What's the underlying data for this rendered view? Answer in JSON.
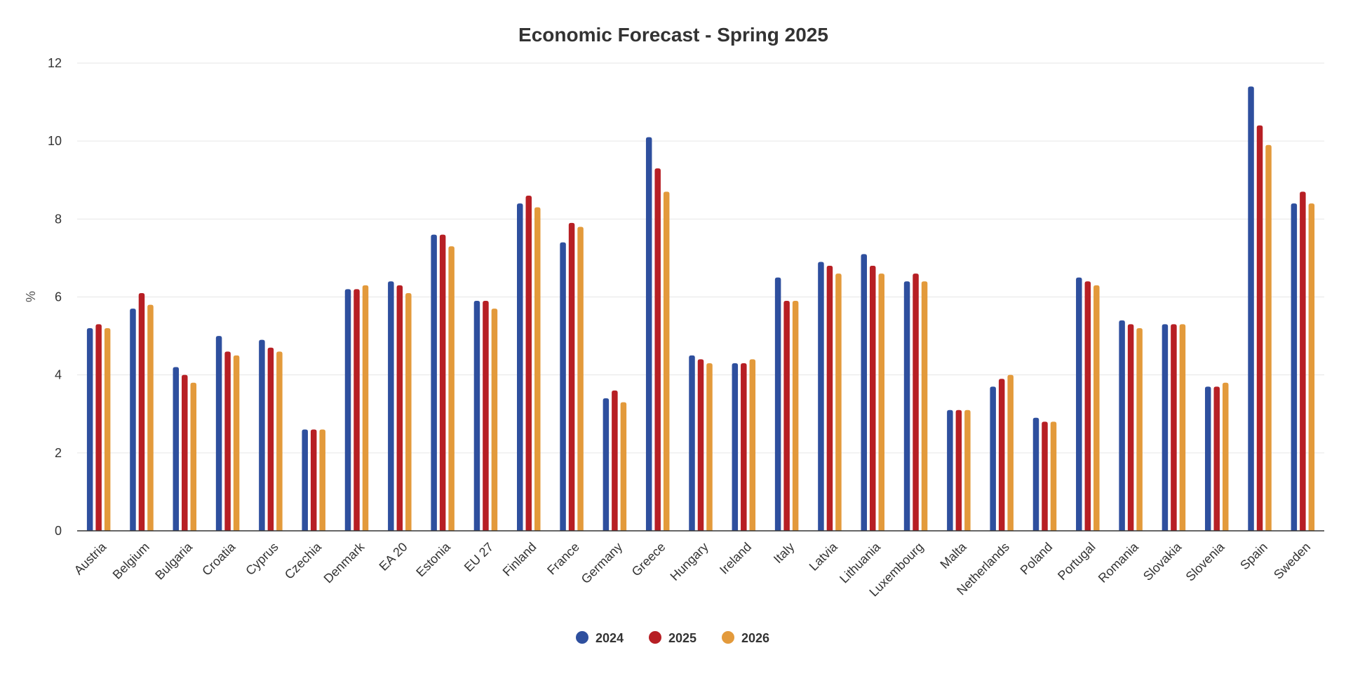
{
  "chart_data": {
    "type": "bar",
    "title": "Economic Forecast - Spring 2025",
    "xlabel": "",
    "ylabel": "%",
    "ylim": [
      0,
      12
    ],
    "yticks": [
      "0",
      "2",
      "4",
      "6",
      "8",
      "10",
      "12"
    ],
    "grid": true,
    "legend_position": "bottom",
    "categories": [
      "Austria",
      "Belgium",
      "Bulgaria",
      "Croatia",
      "Cyprus",
      "Czechia",
      "Denmark",
      "EA 20",
      "Estonia",
      "EU 27",
      "Finland",
      "France",
      "Germany",
      "Greece",
      "Hungary",
      "Ireland",
      "Italy",
      "Latvia",
      "Lithuania",
      "Luxembourg",
      "Malta",
      "Netherlands",
      "Poland",
      "Portugal",
      "Romania",
      "Slovakia",
      "Slovenia",
      "Spain",
      "Sweden"
    ],
    "series": [
      {
        "name": "2024",
        "color": "#2e4f9e",
        "values": [
          5.2,
          5.7,
          4.2,
          5.0,
          4.9,
          2.6,
          6.2,
          6.4,
          7.6,
          5.9,
          8.4,
          7.4,
          3.4,
          10.1,
          4.5,
          4.3,
          6.5,
          6.9,
          7.1,
          6.4,
          3.1,
          3.7,
          2.9,
          6.5,
          5.4,
          5.3,
          3.7,
          11.4,
          8.4
        ]
      },
      {
        "name": "2025",
        "color": "#b71f24",
        "values": [
          5.3,
          6.1,
          4.0,
          4.6,
          4.7,
          2.6,
          6.2,
          6.3,
          7.6,
          5.9,
          8.6,
          7.9,
          3.6,
          9.3,
          4.4,
          4.3,
          5.9,
          6.8,
          6.8,
          6.6,
          3.1,
          3.9,
          2.8,
          6.4,
          5.3,
          5.3,
          3.7,
          10.4,
          8.7
        ]
      },
      {
        "name": "2026",
        "color": "#e39a3b",
        "values": [
          5.2,
          5.8,
          3.8,
          4.5,
          4.6,
          2.6,
          6.3,
          6.1,
          7.3,
          5.7,
          8.3,
          7.8,
          3.3,
          8.7,
          4.3,
          4.4,
          5.9,
          6.6,
          6.6,
          6.4,
          3.1,
          4.0,
          2.8,
          6.3,
          5.2,
          5.3,
          3.8,
          9.9,
          8.4
        ]
      }
    ]
  }
}
